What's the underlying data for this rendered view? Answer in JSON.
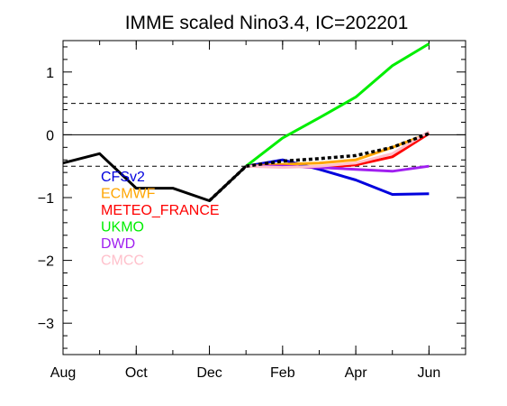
{
  "chart_data": {
    "type": "line",
    "title": "IMME scaled Nino3.4, IC=202201",
    "xlabel": "",
    "ylabel": "",
    "x_ticks": [
      "Aug",
      "Oct",
      "Dec",
      "Feb",
      "Apr",
      "Jun"
    ],
    "x_tick_positions": [
      0,
      2,
      4,
      6,
      8,
      10
    ],
    "xlim": [
      0,
      11
    ],
    "ylim": [
      -3.5,
      1.5
    ],
    "y_ticks": [
      1,
      0,
      -1,
      -2,
      -3
    ],
    "reference_lines": [
      {
        "y": 0,
        "style": "solid"
      },
      {
        "y": 0.5,
        "style": "dashed"
      },
      {
        "y": -0.5,
        "style": "dashed"
      }
    ],
    "observed": {
      "x": [
        0,
        1,
        2,
        3,
        4,
        5
      ],
      "values": [
        -0.45,
        -0.3,
        -0.85,
        -0.85,
        -1.05,
        -0.5
      ],
      "color": "#000000"
    },
    "series": [
      {
        "name": "CFSv2",
        "color": "#0000dd",
        "x": [
          5,
          6,
          7,
          8,
          9,
          10
        ],
        "values": [
          -0.5,
          -0.4,
          -0.55,
          -0.72,
          -0.95,
          -0.94
        ]
      },
      {
        "name": "ECMWF",
        "color": "#ffa500",
        "x": [
          5,
          6,
          7,
          8,
          9,
          10
        ],
        "values": [
          -0.5,
          -0.47,
          -0.45,
          -0.4,
          -0.2,
          0.02
        ]
      },
      {
        "name": "METEO_FRANCE",
        "color": "#ff0000",
        "x": [
          5,
          6,
          7,
          8,
          9,
          10
        ],
        "values": [
          -0.5,
          -0.5,
          -0.52,
          -0.48,
          -0.35,
          0.02
        ]
      },
      {
        "name": "UKMO",
        "color": "#00ee00",
        "x": [
          5,
          6,
          7,
          8,
          9,
          10
        ],
        "values": [
          -0.5,
          -0.05,
          0.27,
          0.6,
          1.1,
          1.45
        ]
      },
      {
        "name": "DWD",
        "color": "#a020f0",
        "x": [
          5,
          6,
          7,
          8,
          9,
          10
        ],
        "values": [
          -0.5,
          -0.5,
          -0.52,
          -0.55,
          -0.58,
          -0.5
        ]
      },
      {
        "name": "CMCC",
        "color": "#ffc0cb",
        "x": [
          5,
          6,
          7,
          8,
          9,
          10
        ],
        "values": [
          -0.5,
          -0.52,
          -0.5,
          -0.45,
          -0.3,
          0.05
        ]
      }
    ],
    "ensemble_mean": {
      "x": [
        4,
        5,
        6,
        7,
        8,
        9,
        10
      ],
      "values": [
        -1.05,
        -0.5,
        -0.42,
        -0.38,
        -0.33,
        -0.2,
        0.02
      ],
      "color": "#000000",
      "style": "dotted"
    },
    "legend_placement": "left"
  }
}
